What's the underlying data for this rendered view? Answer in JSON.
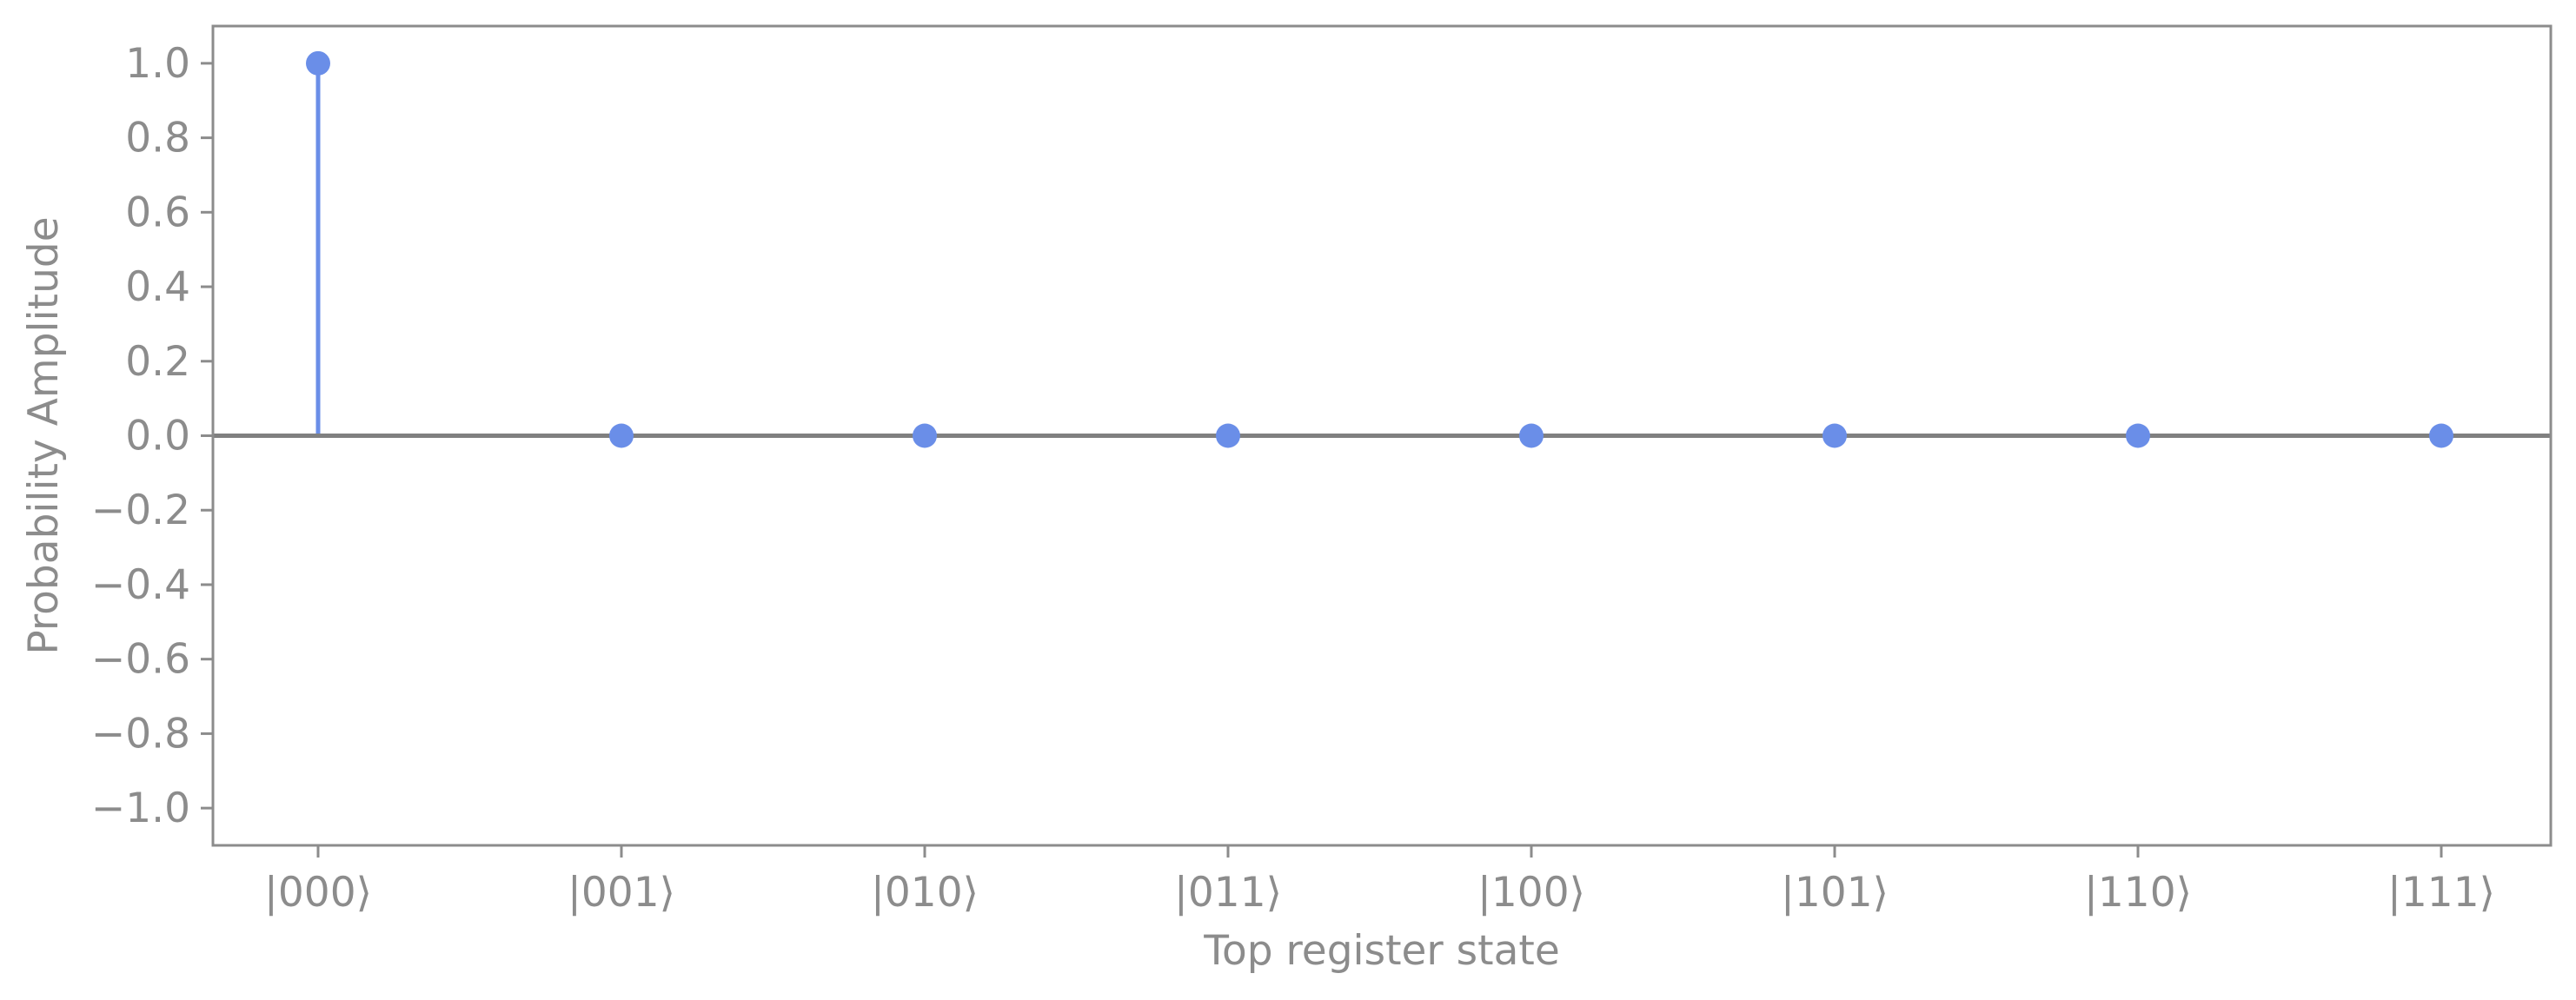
{
  "chart_data": {
    "type": "stem",
    "title": "",
    "xlabel": "Top register state",
    "ylabel": "Probability Amplitude",
    "categories": [
      "|000⟩",
      "|001⟩",
      "|010⟩",
      "|011⟩",
      "|100⟩",
      "|101⟩",
      "|110⟩",
      "|111⟩"
    ],
    "values": [
      1.0,
      0.0,
      0.0,
      0.0,
      0.0,
      0.0,
      0.0,
      0.0
    ],
    "ylim": [
      -1.1,
      1.1
    ],
    "yticks": [
      "1.0",
      "0.8",
      "0.6",
      "0.4",
      "0.2",
      "0.0",
      "−0.2",
      "−0.4",
      "−0.6",
      "−0.8",
      "−1.0"
    ],
    "ytick_values": [
      1.0,
      0.8,
      0.6,
      0.4,
      0.2,
      0.0,
      -0.2,
      -0.4,
      -0.6,
      -0.8,
      -1.0
    ],
    "grid": false,
    "legend": "none",
    "colors": {
      "stem": "#6a8ee8",
      "marker": "#6a8ee8",
      "baseline": "#808080",
      "axis": "#8c8c8c"
    }
  }
}
